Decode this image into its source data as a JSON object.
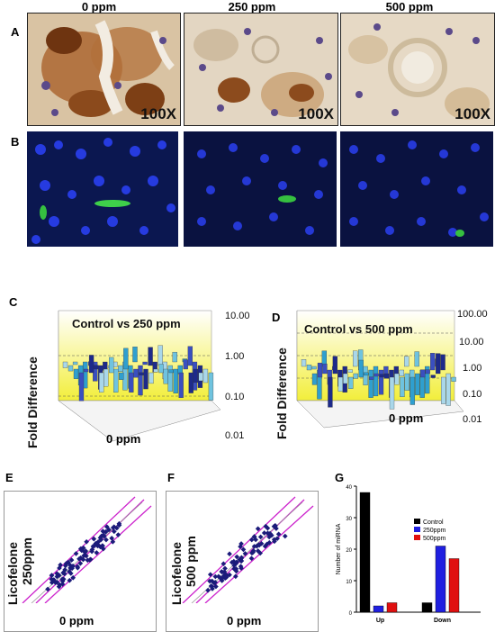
{
  "headers": {
    "col1": "0 ppm",
    "col2": "250 ppm",
    "col3": "500 ppm"
  },
  "panels": {
    "A": "A",
    "B": "B",
    "C": "C",
    "D": "D",
    "E": "E",
    "F": "F",
    "G": "G"
  },
  "magnification": {
    "p1": "100X",
    "p2": "100X",
    "p3": "100X"
  },
  "panel_c": {
    "title": "Control vs 250 ppm",
    "ylabel": "Fold Difference",
    "xlabel": "0 ppm",
    "ticks": [
      "10.00",
      "1.00",
      "0.10",
      "0.01"
    ]
  },
  "panel_d": {
    "title": "Control vs 500 ppm",
    "ylabel": "Fold Difference",
    "xlabel": "0 ppm",
    "ticks": [
      "100.00",
      "10.00",
      "1.00",
      "0.10",
      "0.01"
    ]
  },
  "panel_e": {
    "ylabel_line1": "Licofelone",
    "ylabel_line2": "250ppm",
    "xlabel": "0 ppm"
  },
  "panel_f": {
    "ylabel_line1": "Licofelone",
    "ylabel_line2": "500 ppm",
    "xlabel": "0 ppm"
  },
  "chart_data": {
    "type": "bar",
    "categories": [
      "Up",
      "Down"
    ],
    "ylabel": "Number of miRNA",
    "ylim": [
      0,
      40
    ],
    "yticks": [
      "0",
      "10",
      "20",
      "30",
      "40"
    ],
    "series": [
      {
        "name": "Control",
        "values": [
          38,
          3
        ],
        "color": "#000000"
      },
      {
        "name": "250ppm",
        "values": [
          2,
          21
        ],
        "color": "#1f1fe0"
      },
      {
        "name": "500ppm",
        "values": [
          3,
          17
        ],
        "color": "#e01010"
      }
    ],
    "legend": "top-right"
  }
}
